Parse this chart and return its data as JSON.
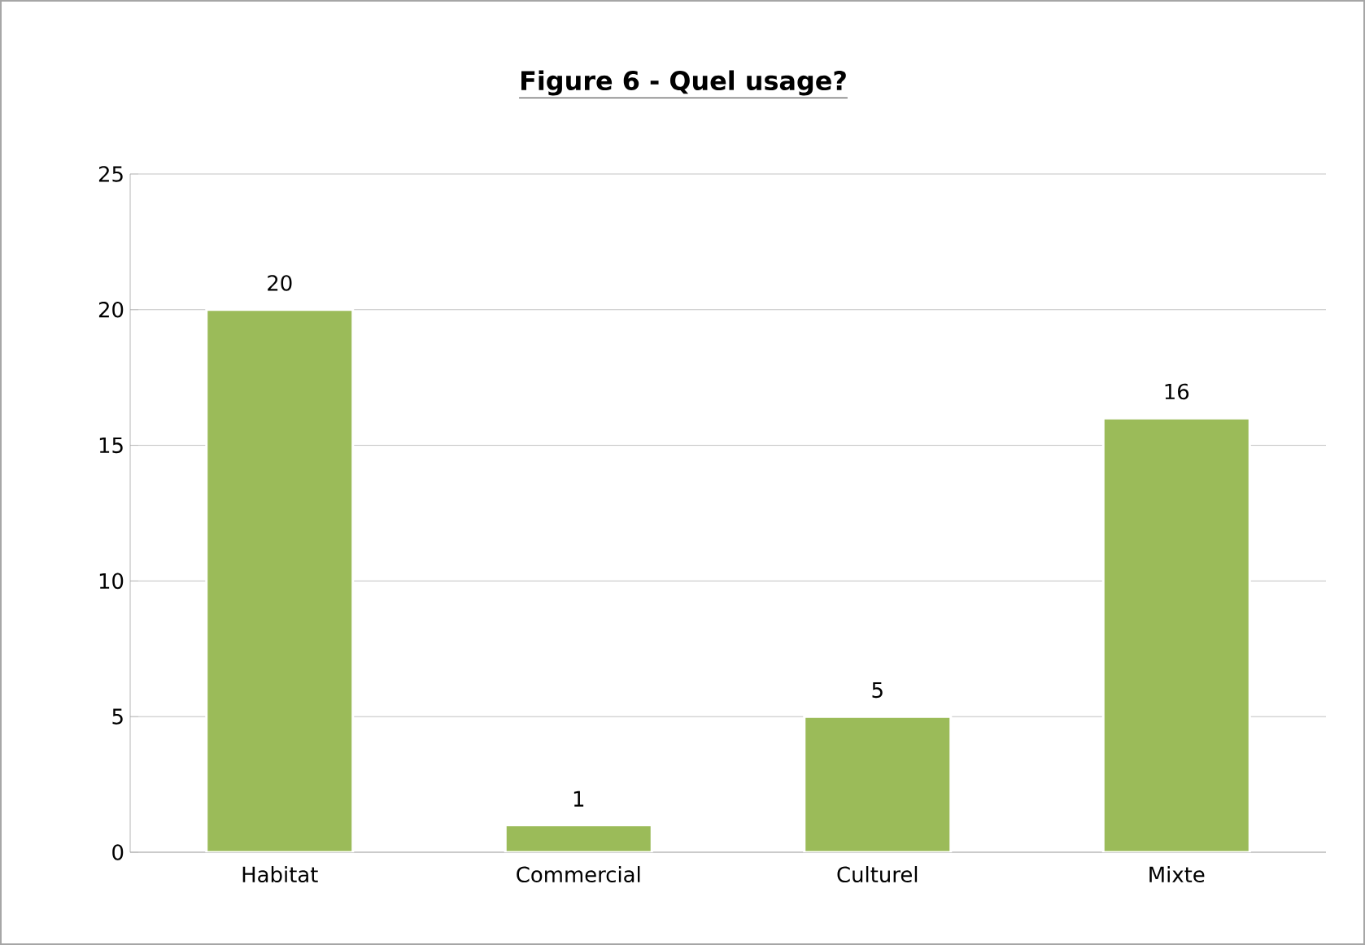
{
  "chart_data": {
    "type": "bar",
    "title": "Figure 6 - Quel usage?",
    "categories": [
      "Habitat",
      "Commercial",
      "Culturel",
      "Mixte"
    ],
    "values": [
      20,
      1,
      5,
      16
    ],
    "color": "#9bbb59",
    "ylim": [
      0,
      25
    ],
    "yticks": [
      0,
      5,
      10,
      15,
      20,
      25
    ],
    "grid": "y",
    "data_labels": true
  }
}
